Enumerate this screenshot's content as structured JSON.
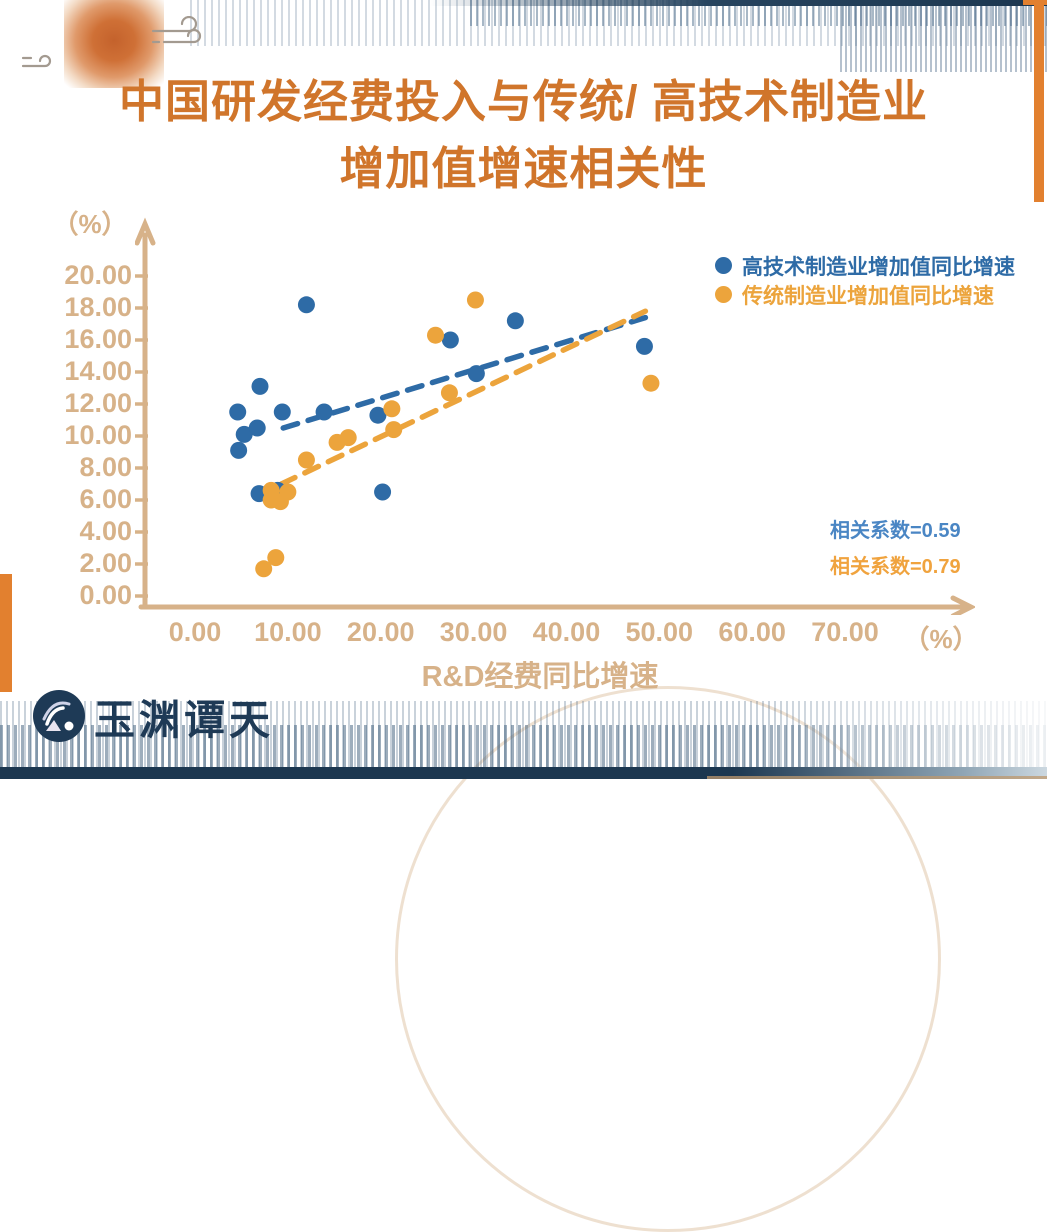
{
  "header": {
    "title_line1": "中国研发经费投入与传统/ 高技术制造业",
    "title_line2": "增加值增速相关性"
  },
  "logo": {
    "brand": "玉渊谭天"
  },
  "colors": {
    "title_orange": "#d0752b",
    "axis_tan": "#d7b289",
    "series_blue": "#2e6ba6",
    "series_orange": "#eca43c",
    "corr_blue": "#4a86c4",
    "corr_orange": "#f0a33e",
    "navy": "#1c3750"
  },
  "chart_data": {
    "type": "scatter",
    "title": "中国研发经费投入与传统/高技术制造业增加值增速相关性",
    "xlabel": "R&D经费同比增速",
    "x_unit": "（%）",
    "y_unit": "（%）",
    "xlim": [
      0,
      80
    ],
    "ylim": [
      0,
      20
    ],
    "x_tick_labels": [
      "0.00",
      "10.00",
      "20.00",
      "30.00",
      "40.00",
      "50.00",
      "60.00",
      "70.00"
    ],
    "y_tick_labels": [
      "20.00",
      "18.00",
      "16.00",
      "14.00",
      "12.00",
      "10.00",
      "8.00",
      "6.00",
      "4.00",
      "2.00",
      "0.00"
    ],
    "grid": false,
    "legend_position": "top-right",
    "series": [
      {
        "name": "高技术制造业增加值同比增速",
        "color": "#2e6ba6",
        "correlation": 0.59,
        "correlation_label": "相关系数=0.59",
        "points": [
          [
            4.6,
            11.5
          ],
          [
            4.7,
            9.1
          ],
          [
            5.3,
            10.1
          ],
          [
            6.7,
            10.5
          ],
          [
            7.0,
            13.1
          ],
          [
            6.9,
            6.4
          ],
          [
            8.9,
            6.6
          ],
          [
            9.4,
            11.5
          ],
          [
            12.0,
            18.2
          ],
          [
            13.9,
            11.5
          ],
          [
            19.7,
            11.3
          ],
          [
            20.2,
            6.5
          ],
          [
            27.5,
            16.0
          ],
          [
            30.3,
            13.9
          ],
          [
            34.5,
            17.2
          ],
          [
            48.4,
            15.6
          ]
        ],
        "trendline": {
          "x1": 9.5,
          "y1": 10.5,
          "x2": 48.5,
          "y2": 17.4
        }
      },
      {
        "name": "传统制造业增加值同比增速",
        "color": "#eca43c",
        "correlation": 0.79,
        "correlation_label": "相关系数=0.79",
        "points": [
          [
            7.4,
            1.7
          ],
          [
            8.7,
            2.4
          ],
          [
            8.2,
            6.6
          ],
          [
            8.2,
            6.0
          ],
          [
            9.2,
            5.9
          ],
          [
            10.0,
            6.5
          ],
          [
            12.0,
            8.5
          ],
          [
            15.3,
            9.6
          ],
          [
            16.5,
            9.9
          ],
          [
            21.2,
            11.7
          ],
          [
            21.4,
            10.4
          ],
          [
            25.9,
            16.3
          ],
          [
            27.4,
            12.7
          ],
          [
            30.2,
            18.5
          ],
          [
            49.1,
            13.3
          ]
        ],
        "trendline": {
          "x1": 9.3,
          "y1": 7.0,
          "x2": 48.5,
          "y2": 17.8
        }
      }
    ]
  }
}
